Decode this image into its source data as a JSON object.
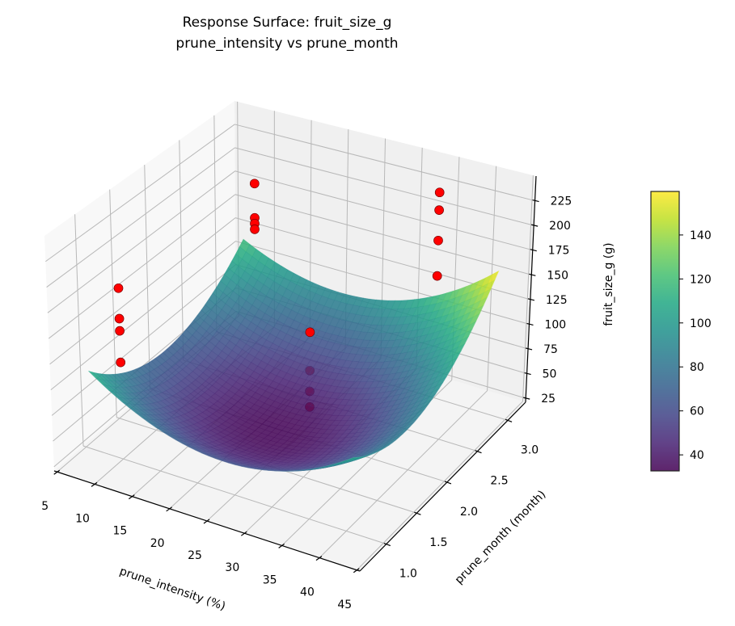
{
  "chart_data": {
    "type": "surface3d",
    "title": "Response Surface: fruit_size_g",
    "subtitle": "prune_intensity vs prune_month",
    "xlabel": "prune_intensity (%)",
    "ylabel": "prune_month (month)",
    "zlabel": "fruit_size_g (g)",
    "xlim": [
      4.6,
      45.4
    ],
    "ylim": [
      0.563,
      3.292
    ],
    "zlim": [
      21,
      250
    ],
    "xticks": [
      5,
      10,
      15,
      20,
      25,
      30,
      35,
      40,
      45
    ],
    "xtick_labels": [
      "5",
      "10",
      "15",
      "20",
      "25",
      "30",
      "35",
      "40",
      "45"
    ],
    "yticks": [
      1.0,
      1.5,
      2.0,
      2.5,
      3.0
    ],
    "ytick_labels": [
      "1.0",
      "1.5",
      "2.0",
      "2.5",
      "3.0"
    ],
    "zticks": [
      25,
      50,
      75,
      100,
      125,
      150,
      175,
      200,
      225
    ],
    "ztick_labels": [
      "25",
      "50",
      "75",
      "100",
      "125",
      "150",
      "175",
      "200",
      "225"
    ],
    "grid": true,
    "surface": {
      "colormap": "viridis",
      "x_range": [
        7.5,
        42.5
      ],
      "y_range": [
        0.8,
        3.1
      ],
      "model": "z = a + p*X + q*Y + r*X*Y + b*X^2 + c*Y^2 (X,Y normalized to [-1,1] over surface range)",
      "coefficients": {
        "a": 35,
        "p": 9,
        "q": 14.5,
        "r": 11,
        "b": 45,
        "c": 45
      },
      "value_range": [
        32.7,
        159.8
      ]
    },
    "points": {
      "color": "#ff0000",
      "data": [
        {
          "x": 10,
          "y": 1,
          "z": 189,
          "behind": false
        },
        {
          "x": 10,
          "y": 1,
          "z": 159,
          "behind": false
        },
        {
          "x": 10,
          "y": 1,
          "z": 147,
          "behind": false
        },
        {
          "x": 10,
          "y": 1,
          "z": 116,
          "behind": false
        },
        {
          "x": 10,
          "y": 3,
          "z": 189,
          "behind": false
        },
        {
          "x": 10,
          "y": 3,
          "z": 153,
          "behind": false
        },
        {
          "x": 10,
          "y": 3,
          "z": 147,
          "behind": false
        },
        {
          "x": 10,
          "y": 3,
          "z": 141,
          "behind": false
        },
        {
          "x": 35,
          "y": 1,
          "z": 201,
          "behind": false
        },
        {
          "x": 35,
          "y": 1,
          "z": 164,
          "behind": true
        },
        {
          "x": 35,
          "y": 1,
          "z": 144,
          "behind": true
        },
        {
          "x": 35,
          "y": 1,
          "z": 129,
          "behind": true
        },
        {
          "x": 35,
          "y": 3,
          "z": 230,
          "behind": false
        },
        {
          "x": 35,
          "y": 3,
          "z": 212,
          "behind": false
        },
        {
          "x": 35,
          "y": 3,
          "z": 181,
          "behind": false
        },
        {
          "x": 35,
          "y": 3,
          "z": 145,
          "behind": true
        }
      ]
    },
    "colorbar": {
      "range": [
        32.7,
        159.8
      ],
      "ticks": [
        40,
        60,
        80,
        100,
        120,
        140
      ],
      "tick_labels": [
        "40",
        "60",
        "80",
        "100",
        "120",
        "140"
      ]
    }
  }
}
